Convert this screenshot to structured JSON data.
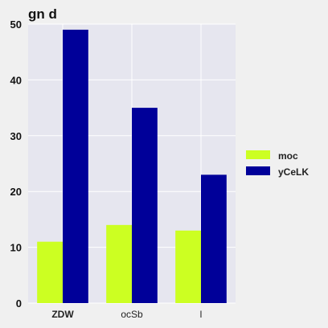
{
  "chart_data": {
    "type": "bar",
    "title": "gn d",
    "xlabel": "",
    "ylabel": "",
    "categories": [
      "ZDW",
      "ocSb",
      "l"
    ],
    "bold_categories": [
      "ZDW"
    ],
    "series": [
      {
        "name": "moc",
        "color": "#ccff22",
        "values": [
          11,
          14,
          13
        ]
      },
      {
        "name": "yCeLK",
        "color": "#000099",
        "values": [
          49,
          35,
          23
        ]
      }
    ],
    "ylim": [
      0,
      50
    ],
    "yticks": [
      0,
      10,
      20,
      30,
      40,
      50
    ],
    "grid": true,
    "legend": "right"
  }
}
